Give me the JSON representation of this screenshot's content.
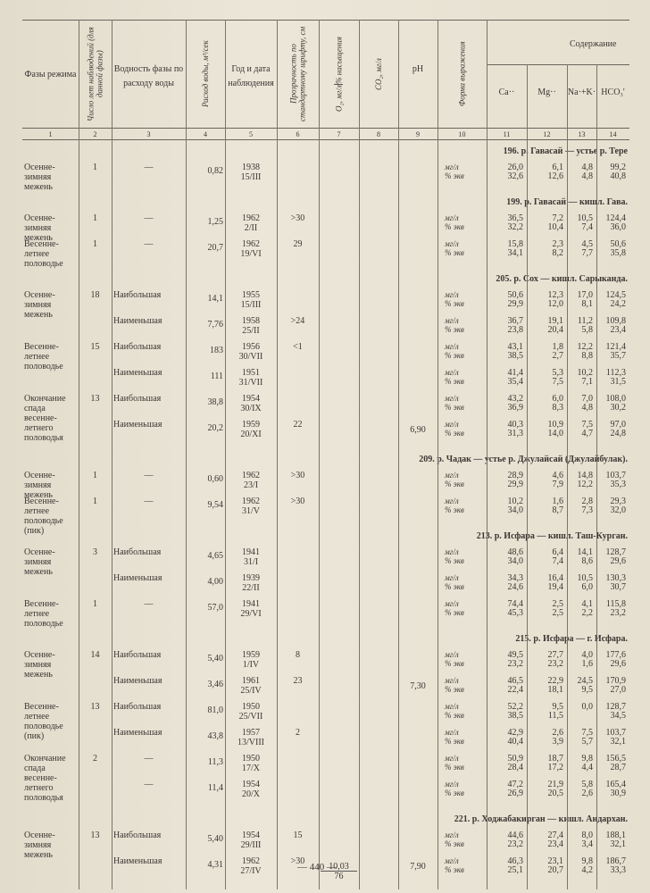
{
  "header": {
    "columns": [
      {
        "number": "1",
        "title": "Фазы режима"
      },
      {
        "number": "2",
        "title": "Число лет наблюдений (для данной фазы)"
      },
      {
        "number": "3",
        "title": "Водность фазы по расходу воды"
      },
      {
        "number": "4",
        "title": "Расход воды, м³/сек"
      },
      {
        "number": "5",
        "title": "Год и дата наблюдения"
      },
      {
        "number": "6",
        "title": "Прозрачность по стандартному шрифту, см"
      },
      {
        "number": "7",
        "title": "O₂, мг/л",
        "subtitle": "% насыщения"
      },
      {
        "number": "8",
        "title": "CO₂, мг/л"
      },
      {
        "number": "9",
        "title": "pH"
      },
      {
        "number": "10",
        "title": "Форма выражения"
      },
      {
        "number": "11",
        "title": "Ca··"
      },
      {
        "number": "12",
        "title": "Mg··"
      },
      {
        "number": "13",
        "title": "Na·+K·"
      },
      {
        "number": "14",
        "title": "HCO₃'"
      }
    ],
    "content_title": "Содержание"
  },
  "form": [
    "мг/л",
    "% экв"
  ],
  "sections": [
    {
      "station": "196. р. Гавасай — устье р. Тере",
      "rows": [
        {
          "phase": "Осенне-зимняя межень",
          "years": "1",
          "water": "—",
          "discharge": "0,82",
          "date": [
            "1938",
            "15/III"
          ],
          "ions": [
            [
              "26,0",
              "32,6"
            ],
            [
              "6,1",
              "12,6"
            ],
            [
              "4,8",
              "4,8"
            ],
            [
              "99,2",
              "40,8"
            ]
          ]
        }
      ]
    },
    {
      "station": "199. р. Гавасай — кишл. Гава.",
      "rows": [
        {
          "phase": "Осенне-зимняя межень",
          "years": "1",
          "water": "—",
          "discharge": "1,25",
          "date": [
            "1962",
            "2/II"
          ],
          "transparency": ">30",
          "ions": [
            [
              "36,5",
              "32,2"
            ],
            [
              "7,2",
              "10,4"
            ],
            [
              "10,5",
              "7,4"
            ],
            [
              "124,4",
              "36,0"
            ]
          ]
        },
        {
          "phase": "Весенне-летнее половодье",
          "years": "1",
          "water": "—",
          "discharge": "20,7",
          "date": [
            "1962",
            "19/VI"
          ],
          "transparency": "29",
          "ions": [
            [
              "15,8",
              "34,1"
            ],
            [
              "2,3",
              "8,2"
            ],
            [
              "4,5",
              "7,7"
            ],
            [
              "50,6",
              "35,8"
            ]
          ]
        }
      ]
    },
    {
      "station": "205. р. Сох — кишл. Сарыканда.",
      "rows": [
        {
          "phase": "Осенне-зимняя межень",
          "years": "18",
          "water": "Наибольшая",
          "discharge": "14,1",
          "date": [
            "1955",
            "15/III"
          ],
          "ions": [
            [
              "50,6",
              "29,9"
            ],
            [
              "12,3",
              "12,0"
            ],
            [
              "17,0",
              "8,1"
            ],
            [
              "124,5",
              "24,2"
            ]
          ]
        },
        {
          "water": "Наименьшая",
          "discharge": "7,76",
          "date": [
            "1958",
            "25/II"
          ],
          "transparency": ">24",
          "ions": [
            [
              "36,7",
              "23,8"
            ],
            [
              "19,1",
              "20,4"
            ],
            [
              "11,2",
              "5,8"
            ],
            [
              "109,8",
              "23,4"
            ]
          ]
        },
        {
          "phase": "Весенне-летнее половодье",
          "years": "15",
          "water": "Наибольшая",
          "discharge": "183",
          "date": [
            "1956",
            "30/VII"
          ],
          "transparency": "<1",
          "ions": [
            [
              "43,1",
              "38,5"
            ],
            [
              "1,8",
              "2,7"
            ],
            [
              "12,2",
              "8,8"
            ],
            [
              "121,4",
              "35,7"
            ]
          ]
        },
        {
          "water": "Наименьшая",
          "discharge": "111",
          "date": [
            "1951",
            "31/VII"
          ],
          "ions": [
            [
              "41,4",
              "35,4"
            ],
            [
              "5,3",
              "7,5"
            ],
            [
              "10,2",
              "7,1"
            ],
            [
              "112,3",
              "31,5"
            ]
          ]
        },
        {
          "phase": "Окончание спада весенне-летнего половодья",
          "years": "13",
          "water": "Наибольшая",
          "discharge": "38,8",
          "date": [
            "1954",
            "30/IX"
          ],
          "ions": [
            [
              "43,2",
              "36,9"
            ],
            [
              "6,0",
              "8,3"
            ],
            [
              "7,0",
              "4,8"
            ],
            [
              "108,0",
              "30,2"
            ]
          ]
        },
        {
          "water": "Наименьшая",
          "discharge": "20,2",
          "date": [
            "1959",
            "20/XI"
          ],
          "transparency": "22",
          "ph": "6,90",
          "ions": [
            [
              "40,3",
              "31,3"
            ],
            [
              "10,9",
              "14,0"
            ],
            [
              "7,5",
              "4,7"
            ],
            [
              "97,0",
              "24,8"
            ]
          ]
        }
      ]
    },
    {
      "station": "209. р. Чадак — устье р. Джулайсай (Джулайбулак).",
      "rows": [
        {
          "phase": "Осенне-зимняя межень",
          "years": "1",
          "water": "—",
          "discharge": "0,60",
          "date": [
            "1962",
            "23/I"
          ],
          "transparency": ">30",
          "ions": [
            [
              "28,9",
              "29,9"
            ],
            [
              "4,6",
              "7,9"
            ],
            [
              "14,8",
              "12,2"
            ],
            [
              "103,7",
              "35,3"
            ]
          ]
        },
        {
          "phase": "Весенне-летнее половодье (пик)",
          "years": "1",
          "water": "—",
          "discharge": "9,54",
          "date": [
            "1962",
            "31/V"
          ],
          "transparency": ">30",
          "ions": [
            [
              "10,2",
              "34,0"
            ],
            [
              "1,6",
              "8,7"
            ],
            [
              "2,8",
              "7,3"
            ],
            [
              "29,3",
              "32,0"
            ]
          ]
        }
      ]
    },
    {
      "station": "213. р. Исфара — кишл. Таш-Курган.",
      "rows": [
        {
          "phase": "Осенне-зимняя межень",
          "years": "3",
          "water": "Наибольшая",
          "discharge": "4,65",
          "date": [
            "1941",
            "31/I"
          ],
          "ions": [
            [
              "48,6",
              "34,0"
            ],
            [
              "6,4",
              "7,4"
            ],
            [
              "14,1",
              "8,6"
            ],
            [
              "128,7",
              "29,6"
            ]
          ]
        },
        {
          "water": "Наименьшая",
          "discharge": "4,00",
          "date": [
            "1939",
            "22/II"
          ],
          "ions": [
            [
              "34,3",
              "24,6"
            ],
            [
              "16,4",
              "19,4"
            ],
            [
              "10,5",
              "6,0"
            ],
            [
              "130,3",
              "30,7"
            ]
          ]
        },
        {
          "phase": "Весенне-летнее половодье",
          "years": "1",
          "water": "—",
          "discharge": "57,0",
          "date": [
            "1941",
            "29/VI"
          ],
          "ions": [
            [
              "74,4",
              "45,3"
            ],
            [
              "2,5",
              "2,5"
            ],
            [
              "4,1",
              "2,2"
            ],
            [
              "115,8",
              "23,2"
            ]
          ]
        }
      ]
    },
    {
      "station": "215. р. Исфара — г. Исфара.",
      "rows": [
        {
          "phase": "Осенне-зимняя межень",
          "years": "14",
          "water": "Наибольшая",
          "discharge": "5,40",
          "date": [
            "1959",
            "1/IV"
          ],
          "transparency": "8",
          "ions": [
            [
              "49,5",
              "23,2"
            ],
            [
              "27,7",
              "23,2"
            ],
            [
              "4,0",
              "1,6"
            ],
            [
              "177,6",
              "29,6"
            ]
          ]
        },
        {
          "water": "Наименьшая",
          "discharge": "3,46",
          "date": [
            "1961",
            "25/IV"
          ],
          "transparency": "23",
          "ph": "7,30",
          "ions": [
            [
              "46,5",
              "22,4"
            ],
            [
              "22,9",
              "18,1"
            ],
            [
              "24,5",
              "9,5"
            ],
            [
              "170,9",
              "27,0"
            ]
          ]
        },
        {
          "phase": "Весенне-летнее половодье (пик)",
          "years": "13",
          "water": "Наибольшая",
          "discharge": "81,0",
          "date": [
            "1950",
            "25/VII"
          ],
          "ions": [
            [
              "52,2",
              "38,5"
            ],
            [
              "9,5",
              "11,5"
            ],
            [
              "0,0"
            ],
            [
              "128,7",
              "34,5"
            ]
          ]
        },
        {
          "water": "Наименьшая",
          "discharge": "43,8",
          "date": [
            "1957",
            "13/VIII"
          ],
          "transparency": "2",
          "ions": [
            [
              "42,9",
              "40,4"
            ],
            [
              "2,6",
              "3,9"
            ],
            [
              "7,5",
              "5,7"
            ],
            [
              "103,7",
              "32,1"
            ]
          ]
        },
        {
          "phase": "Окончание спада весенне-летнего половодья",
          "years": "2",
          "water": "—",
          "discharge": "11,3",
          "date": [
            "1950",
            "17/X"
          ],
          "ions": [
            [
              "50,9",
              "28,4"
            ],
            [
              "18,7",
              "17,2"
            ],
            [
              "9,8",
              "4,4"
            ],
            [
              "156,5",
              "28,7"
            ]
          ]
        },
        {
          "water": "—",
          "discharge": "11,4",
          "date": [
            "1954",
            "20/X"
          ],
          "ions": [
            [
              "47,2",
              "26,9"
            ],
            [
              "21,9",
              "20,5"
            ],
            [
              "5,8",
              "2,6"
            ],
            [
              "165,4",
              "30,9"
            ]
          ]
        }
      ]
    },
    {
      "station": "221. р. Ходжабакирган — кишл. Андархан.",
      "rows": [
        {
          "phase": "Осенне-зимняя межень",
          "years": "13",
          "water": "Наибольшая",
          "discharge": "5,40",
          "date": [
            "1954",
            "29/III"
          ],
          "transparency": "15",
          "ions": [
            [
              "44,6",
              "23,2"
            ],
            [
              "27,4",
              "23,4"
            ],
            [
              "8,0",
              "3,4"
            ],
            [
              "188,1",
              "32,1"
            ]
          ]
        },
        {
          "water": "Наименьшая",
          "discharge": "4,31",
          "date": [
            "1962",
            "27/IV"
          ],
          "transparency": ">30",
          "o2": [
            "10,03",
            "76"
          ],
          "ph": "7,90",
          "ions": [
            [
              "46,3",
              "25,1"
            ],
            [
              "23,1",
              "20,7"
            ],
            [
              "9,8",
              "4,2"
            ],
            [
              "186,7",
              "33,3"
            ]
          ]
        }
      ]
    }
  ],
  "footer": {
    "page": "— 440 —"
  }
}
